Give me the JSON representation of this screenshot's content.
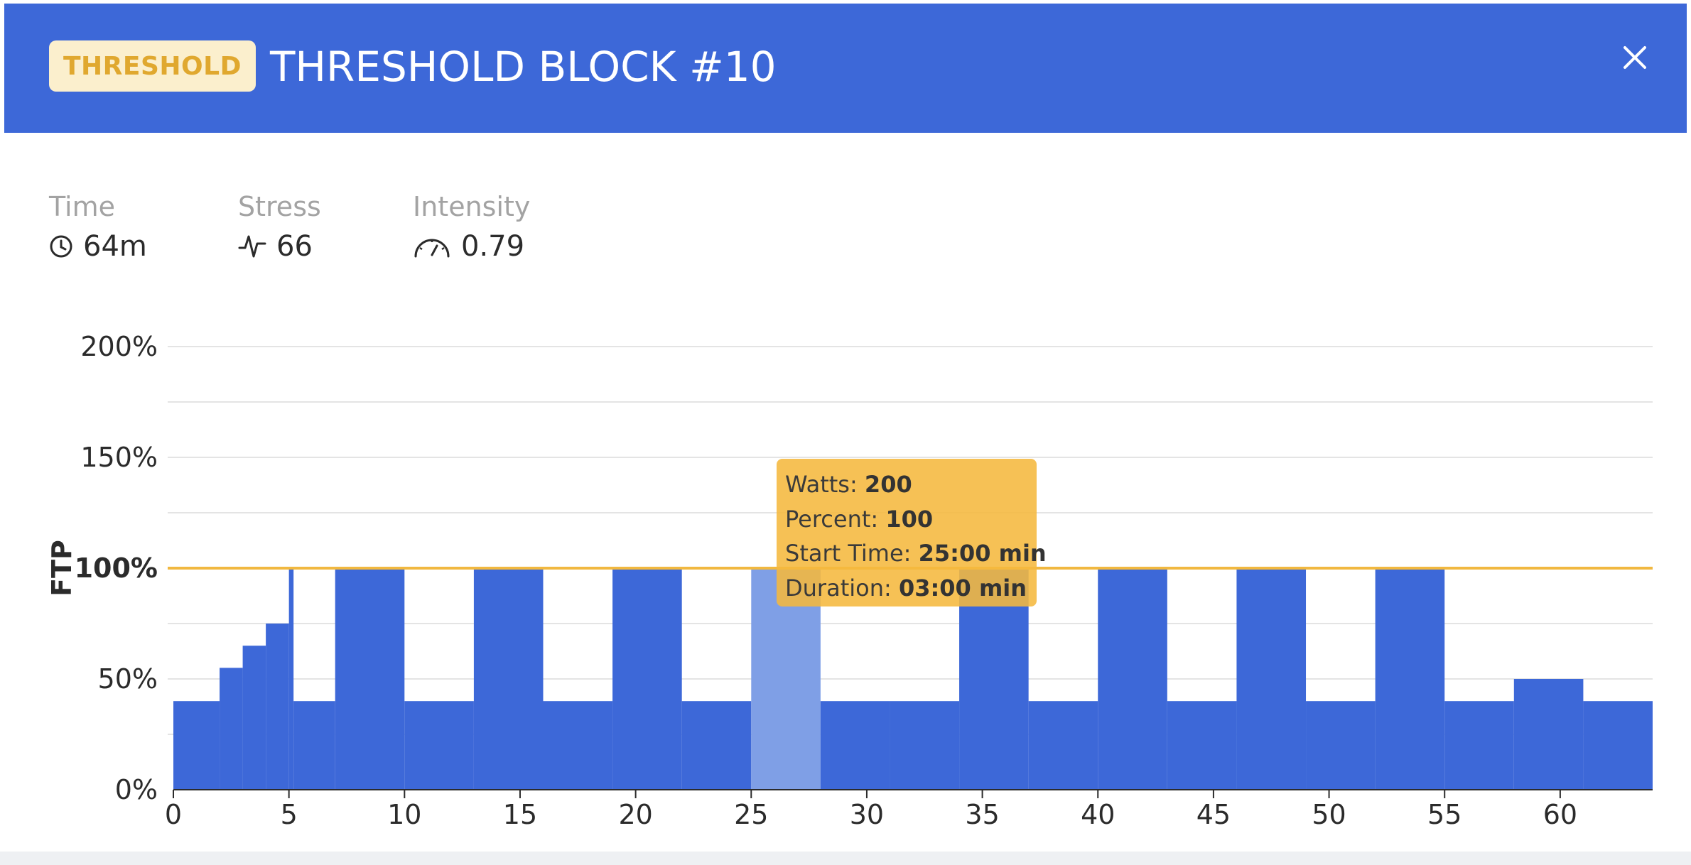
{
  "header": {
    "badge": "THRESHOLD",
    "title": "THRESHOLD BLOCK #10",
    "close_icon": "close-icon",
    "color": "#3d68d8",
    "badge_text_color": "#e0a82f",
    "badge_bg_color": "#fbefcd"
  },
  "stats": [
    {
      "label": "Time",
      "value": "64m",
      "icon": "clock-icon"
    },
    {
      "label": "Stress",
      "value": "66",
      "icon": "pulse-icon"
    },
    {
      "label": "Intensity",
      "value": "0.79",
      "icon": "gauge-icon"
    }
  ],
  "tooltip": {
    "watts_label": "Watts:",
    "watts_value": "200",
    "percent_label": "Percent:",
    "percent_value": "100",
    "start_label": "Start Time:",
    "start_value": "25:00 min",
    "duration_label": "Duration:",
    "duration_value": "03:00 min"
  },
  "chart_data": {
    "type": "bar",
    "ylabel": "FTP",
    "x_ticks": [
      0,
      5,
      10,
      15,
      20,
      25,
      30,
      35,
      40,
      45,
      50,
      55,
      60
    ],
    "y_ticks": [
      "0%",
      "50%",
      "100%",
      "150%",
      "200%"
    ],
    "y_tick_values": [
      0,
      50,
      100,
      150,
      200
    ],
    "xlim": [
      0,
      64
    ],
    "ylim": [
      0,
      200
    ],
    "ftp_line": 100,
    "grid": true,
    "bar_color": "#3d68d8",
    "highlight_color": "#7f9fe6",
    "ftp_line_color": "#f1b840",
    "segments": [
      {
        "start": 0,
        "duration": 2,
        "percent": 40
      },
      {
        "start": 2,
        "duration": 1,
        "percent": 55
      },
      {
        "start": 3,
        "duration": 1,
        "percent": 65
      },
      {
        "start": 4,
        "duration": 1,
        "percent": 75
      },
      {
        "start": 5,
        "duration": 0.2,
        "percent": 100
      },
      {
        "start": 5.2,
        "duration": 1.8,
        "percent": 40
      },
      {
        "start": 7,
        "duration": 3,
        "percent": 100
      },
      {
        "start": 10,
        "duration": 3,
        "percent": 40
      },
      {
        "start": 13,
        "duration": 3,
        "percent": 100
      },
      {
        "start": 16,
        "duration": 3,
        "percent": 40
      },
      {
        "start": 19,
        "duration": 3,
        "percent": 100
      },
      {
        "start": 22,
        "duration": 3,
        "percent": 40
      },
      {
        "start": 25,
        "duration": 3,
        "percent": 100,
        "highlight": true
      },
      {
        "start": 28,
        "duration": 3,
        "percent": 40
      },
      {
        "start": 31,
        "duration": 3,
        "percent": 40
      },
      {
        "start": 34,
        "duration": 3,
        "percent": 100
      },
      {
        "start": 37,
        "duration": 3,
        "percent": 40
      },
      {
        "start": 40,
        "duration": 3,
        "percent": 100
      },
      {
        "start": 43,
        "duration": 3,
        "percent": 40
      },
      {
        "start": 46,
        "duration": 3,
        "percent": 100
      },
      {
        "start": 49,
        "duration": 3,
        "percent": 40
      },
      {
        "start": 52,
        "duration": 3,
        "percent": 100
      },
      {
        "start": 55,
        "duration": 3,
        "percent": 40
      },
      {
        "start": 58,
        "duration": 3,
        "percent": 50
      },
      {
        "start": 61,
        "duration": 3,
        "percent": 40
      }
    ]
  }
}
